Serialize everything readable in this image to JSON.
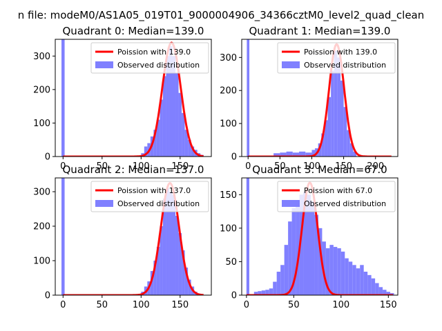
{
  "figure": {
    "suptitle": "n file: modeM0/AS1A05_019T01_9000004906_34366cztM0_level2_quad_clean"
  },
  "colors": {
    "histogram": "#8080ff",
    "poisson_line": "#ff0000",
    "axes": "#000000",
    "background": "#ffffff"
  },
  "chart_data": [
    {
      "type": "bar",
      "title": "Quadrant 0: Median=139.0",
      "xlim": [
        -10,
        190
      ],
      "ylim": [
        0,
        350
      ],
      "xticks": [
        0,
        50,
        100,
        150
      ],
      "yticks": [
        0,
        100,
        200,
        300
      ],
      "legend": {
        "position": "top-right",
        "entries": [
          "Poission with 139.0",
          "Observed distribution"
        ]
      },
      "series": [
        {
          "name": "Observed distribution",
          "kind": "histogram",
          "bins": [
            [
              -2,
              2,
              350
            ],
            [
              100,
              104,
              10
            ],
            [
              104,
              108,
              30
            ],
            [
              108,
              112,
              40
            ],
            [
              112,
              116,
              60
            ],
            [
              116,
              120,
              80
            ],
            [
              120,
              124,
              110
            ],
            [
              124,
              128,
              170
            ],
            [
              128,
              132,
              240
            ],
            [
              132,
              136,
              300
            ],
            [
              136,
              140,
              330
            ],
            [
              140,
              144,
              300
            ],
            [
              144,
              148,
              250
            ],
            [
              148,
              152,
              190
            ],
            [
              152,
              156,
              130
            ],
            [
              156,
              160,
              80
            ],
            [
              160,
              164,
              50
            ],
            [
              164,
              168,
              30
            ],
            [
              168,
              172,
              20
            ],
            [
              172,
              176,
              10
            ],
            [
              176,
              180,
              5
            ]
          ]
        },
        {
          "name": "Poission with 139.0",
          "kind": "poisson",
          "mean": 139.0,
          "scale": 340,
          "x_range": [
            0,
            180
          ]
        }
      ]
    },
    {
      "type": "bar",
      "title": "Quadrant 1: Median=139.0",
      "xlim": [
        -10,
        235
      ],
      "ylim": [
        0,
        355
      ],
      "xticks": [
        0,
        50,
        100,
        150,
        200
      ],
      "yticks": [
        0,
        100,
        200,
        300
      ],
      "legend": {
        "position": "top-right",
        "entries": [
          "Poission with 139.0",
          "Observed distribution"
        ]
      },
      "series": [
        {
          "name": "Observed distribution",
          "kind": "histogram",
          "bins": [
            [
              -2,
              2,
              355
            ],
            [
              40,
              50,
              10
            ],
            [
              50,
              60,
              12
            ],
            [
              60,
              70,
              15
            ],
            [
              70,
              80,
              12
            ],
            [
              80,
              90,
              15
            ],
            [
              90,
              100,
              12
            ],
            [
              100,
              105,
              20
            ],
            [
              105,
              110,
              25
            ],
            [
              110,
              115,
              40
            ],
            [
              115,
              120,
              70
            ],
            [
              120,
              125,
              110
            ],
            [
              125,
              130,
              180
            ],
            [
              130,
              135,
              260
            ],
            [
              135,
              140,
              320
            ],
            [
              140,
              145,
              300
            ],
            [
              145,
              150,
              230
            ],
            [
              150,
              155,
              150
            ],
            [
              155,
              160,
              80
            ],
            [
              160,
              165,
              40
            ],
            [
              165,
              170,
              15
            ]
          ]
        },
        {
          "name": "Poission with 139.0",
          "kind": "poisson",
          "mean": 139.0,
          "scale": 340,
          "x_range": [
            0,
            225
          ]
        }
      ]
    },
    {
      "type": "bar",
      "title": "Quadrant 2: Median=137.0",
      "xlim": [
        -10,
        190
      ],
      "ylim": [
        0,
        340
      ],
      "xticks": [
        0,
        50,
        100,
        150
      ],
      "yticks": [
        0,
        100,
        200,
        300
      ],
      "legend": {
        "position": "top-right",
        "entries": [
          "Poission with 137.0",
          "Observed distribution"
        ]
      },
      "series": [
        {
          "name": "Observed distribution",
          "kind": "histogram",
          "bins": [
            [
              -2,
              2,
              340
            ],
            [
              100,
              104,
              10
            ],
            [
              104,
              108,
              25
            ],
            [
              108,
              112,
              40
            ],
            [
              112,
              116,
              70
            ],
            [
              116,
              120,
              100
            ],
            [
              120,
              124,
              140
            ],
            [
              124,
              128,
              200
            ],
            [
              128,
              132,
              280
            ],
            [
              132,
              136,
              310
            ],
            [
              136,
              140,
              300
            ],
            [
              140,
              144,
              290
            ],
            [
              144,
              148,
              230
            ],
            [
              148,
              152,
              180
            ],
            [
              152,
              156,
              130
            ],
            [
              156,
              160,
              80
            ],
            [
              160,
              164,
              45
            ],
            [
              164,
              168,
              25
            ],
            [
              168,
              172,
              10
            ],
            [
              172,
              176,
              5
            ]
          ]
        },
        {
          "name": "Poission with 137.0",
          "kind": "poisson",
          "mean": 137.0,
          "scale": 325,
          "x_range": [
            0,
            180
          ]
        }
      ]
    },
    {
      "type": "bar",
      "title": "Quadrant 3: Median=67.0",
      "xlim": [
        -5,
        160
      ],
      "ylim": [
        0,
        175
      ],
      "xticks": [
        0,
        50,
        100,
        150
      ],
      "yticks": [
        0,
        50,
        100,
        150
      ],
      "legend": {
        "position": "top-right",
        "entries": [
          "Poission with 67.0",
          "Observed distribution"
        ]
      },
      "series": [
        {
          "name": "Observed distribution",
          "kind": "histogram",
          "bins": [
            [
              0,
              3,
              175
            ],
            [
              8,
              12,
              5
            ],
            [
              12,
              16,
              6
            ],
            [
              16,
              20,
              7
            ],
            [
              20,
              24,
              8
            ],
            [
              24,
              28,
              10
            ],
            [
              28,
              32,
              20
            ],
            [
              32,
              36,
              35
            ],
            [
              36,
              40,
              45
            ],
            [
              40,
              44,
              75
            ],
            [
              44,
              48,
              110
            ],
            [
              48,
              52,
              130
            ],
            [
              52,
              56,
              140
            ],
            [
              56,
              60,
              150
            ],
            [
              60,
              64,
              155
            ],
            [
              64,
              68,
              150
            ],
            [
              68,
              72,
              140
            ],
            [
              72,
              76,
              120
            ],
            [
              76,
              80,
              100
            ],
            [
              80,
              84,
              80
            ],
            [
              84,
              88,
              70
            ],
            [
              88,
              92,
              75
            ],
            [
              92,
              96,
              72
            ],
            [
              96,
              100,
              70
            ],
            [
              100,
              104,
              65
            ],
            [
              104,
              108,
              55
            ],
            [
              108,
              112,
              50
            ],
            [
              112,
              116,
              45
            ],
            [
              116,
              120,
              40
            ],
            [
              120,
              124,
              45
            ],
            [
              124,
              128,
              35
            ],
            [
              128,
              132,
              30
            ],
            [
              132,
              136,
              25
            ],
            [
              136,
              140,
              18
            ],
            [
              140,
              144,
              12
            ],
            [
              144,
              148,
              8
            ],
            [
              148,
              152,
              5
            ],
            [
              152,
              156,
              3
            ]
          ]
        },
        {
          "name": "Poission with 67.0",
          "kind": "poisson",
          "mean": 67.0,
          "scale": 168,
          "x_range": [
            0,
            155
          ]
        }
      ]
    }
  ]
}
